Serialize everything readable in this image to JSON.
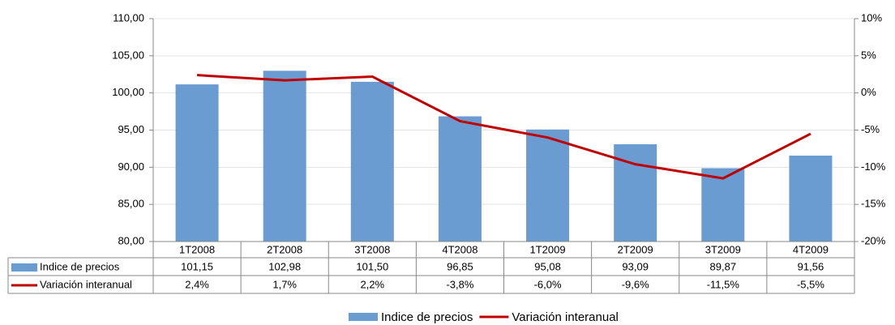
{
  "chart_data": {
    "type": "bar",
    "categories": [
      "1T2008",
      "2T2008",
      "3T2008",
      "4T2008",
      "1T2009",
      "2T2009",
      "3T2009",
      "4T2009"
    ],
    "series": [
      {
        "name": "Indice de precios",
        "type": "bar",
        "color": "#6a9bd1",
        "values": [
          101.15,
          102.98,
          101.5,
          96.85,
          95.08,
          93.09,
          89.87,
          91.56
        ],
        "value_labels": [
          "101,15",
          "102,98",
          "101,50",
          "96,85",
          "95,08",
          "93,09",
          "89,87",
          "91,56"
        ]
      },
      {
        "name": "Variación interanual",
        "type": "line",
        "color": "#c00000",
        "axis": "y2",
        "values": [
          2.4,
          1.7,
          2.2,
          -3.8,
          -6.0,
          -9.6,
          -11.5,
          -5.5
        ],
        "value_labels": [
          "2,4%",
          "1,7%",
          "2,2%",
          "-3,8%",
          "-6,0%",
          "-9,6%",
          "-11,5%",
          "-5,5%"
        ]
      }
    ],
    "ylim": [
      80,
      110
    ],
    "yticks": [
      {
        "value": 80,
        "label": "80,00"
      },
      {
        "value": 85,
        "label": "85,00"
      },
      {
        "value": 90,
        "label": "90,00"
      },
      {
        "value": 95,
        "label": "95,00"
      },
      {
        "value": 100,
        "label": "100,00"
      },
      {
        "value": 105,
        "label": "105,00"
      },
      {
        "value": 110,
        "label": "110,00"
      }
    ],
    "y2lim": [
      -20,
      10
    ],
    "y2ticks": [
      {
        "value": -20,
        "label": "-20%"
      },
      {
        "value": -15,
        "label": "-15%"
      },
      {
        "value": -10,
        "label": "-10%"
      },
      {
        "value": -5,
        "label": "-5%"
      },
      {
        "value": 0,
        "label": "0%"
      },
      {
        "value": 5,
        "label": "5%"
      },
      {
        "value": 10,
        "label": "10%"
      }
    ],
    "grid": true,
    "data_table": true,
    "legend": "bottom"
  }
}
